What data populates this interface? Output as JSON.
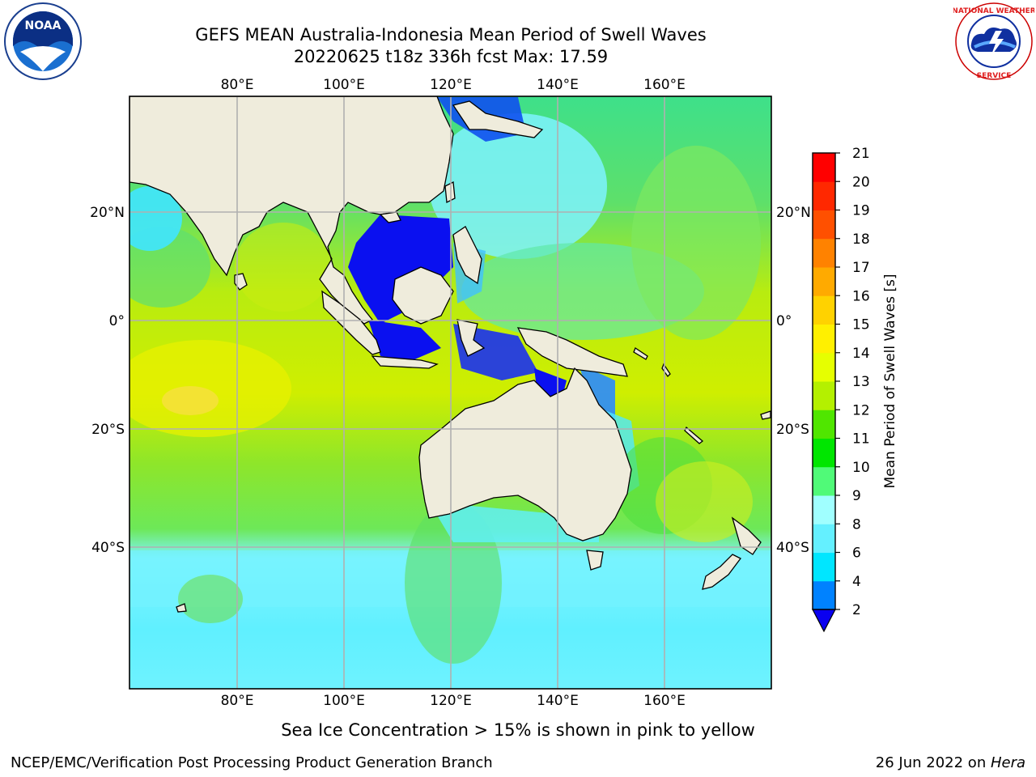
{
  "title": {
    "line1": "GEFS MEAN Australia-Indonesia Mean Period of Swell Waves",
    "line2": "20220625 t18z 336h fcst   Max: 17.59"
  },
  "logos": {
    "left": "NOAA",
    "left_ring": "NATIONAL OCEANIC AND ATMOSPHERIC ADMINISTRATION · U.S. DEPARTMENT OF COMMERCE",
    "right_ring": "NATIONAL WEATHER SERVICE"
  },
  "map": {
    "lon_labels": [
      "80°E",
      "100°E",
      "120°E",
      "140°E",
      "160°E"
    ],
    "lat_labels": [
      "20°N",
      "0°",
      "20°S",
      "40°S"
    ],
    "grid_color": "#b0b0b0",
    "land_color": "#efecdc"
  },
  "colorbar": {
    "label": "Mean Period of Swell Waves [s]",
    "ticks": [
      "2",
      "4",
      "6",
      "8",
      "9",
      "10",
      "11",
      "12",
      "13",
      "14",
      "15",
      "16",
      "17",
      "18",
      "19",
      "20",
      "21"
    ],
    "colors": [
      "#0a00f0",
      "#0082ff",
      "#00e6ff",
      "#64f0ff",
      "#a0ffff",
      "#50fa78",
      "#00e600",
      "#50e600",
      "#b4f000",
      "#e6ff00",
      "#fff000",
      "#ffd200",
      "#ffaa00",
      "#ff8200",
      "#ff5000",
      "#ff2800",
      "#ff0000"
    ],
    "extend_color": "#0a00f0"
  },
  "note": "Sea Ice Concentration > 15% is shown in pink to yellow",
  "footer": {
    "left": "NCEP/EMC/Verification Post Processing Product Generation Branch",
    "right_date": "26 Jun 2022 on ",
    "right_machine": "Hera"
  }
}
